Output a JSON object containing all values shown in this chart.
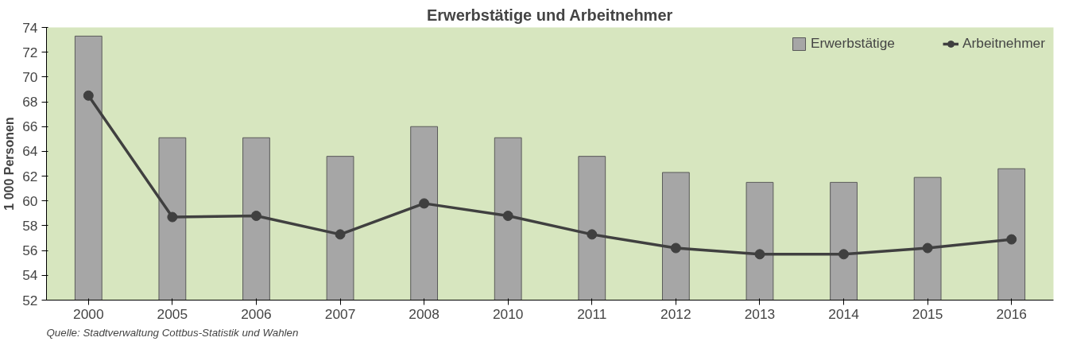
{
  "chart_data": {
    "type": "bar",
    "title": "Erwerbstätige und Arbeitnehmer",
    "ylabel": "1 000 Personen",
    "categories": [
      "2000",
      "2005",
      "2006",
      "2007",
      "2008",
      "2010",
      "2011",
      "2012",
      "2013",
      "2014",
      "2015",
      "2016"
    ],
    "series": [
      {
        "name": "Erwerbstätige",
        "color": "#a6a6a6",
        "values": [
          73.3,
          65.1,
          65.1,
          63.6,
          66.0,
          65.1,
          63.6,
          62.3,
          61.5,
          61.5,
          61.9,
          62.6
        ]
      },
      {
        "name": "Arbeitnehmer",
        "type": "line",
        "color": "#404040",
        "values": [
          68.5,
          58.7,
          58.8,
          57.3,
          59.8,
          58.8,
          57.3,
          56.2,
          55.7,
          55.7,
          56.2,
          56.9
        ]
      }
    ],
    "ylim": [
      52,
      74
    ],
    "yticks": [
      52,
      54,
      56,
      58,
      60,
      62,
      64,
      66,
      68,
      70,
      72,
      74
    ],
    "grid": false,
    "legend": "top right",
    "marker": "circle",
    "line_style": "solid",
    "annotations": [
      "Quelle: Stadtverwaltung Cottbus-Statistik und Wahlen"
    ]
  }
}
